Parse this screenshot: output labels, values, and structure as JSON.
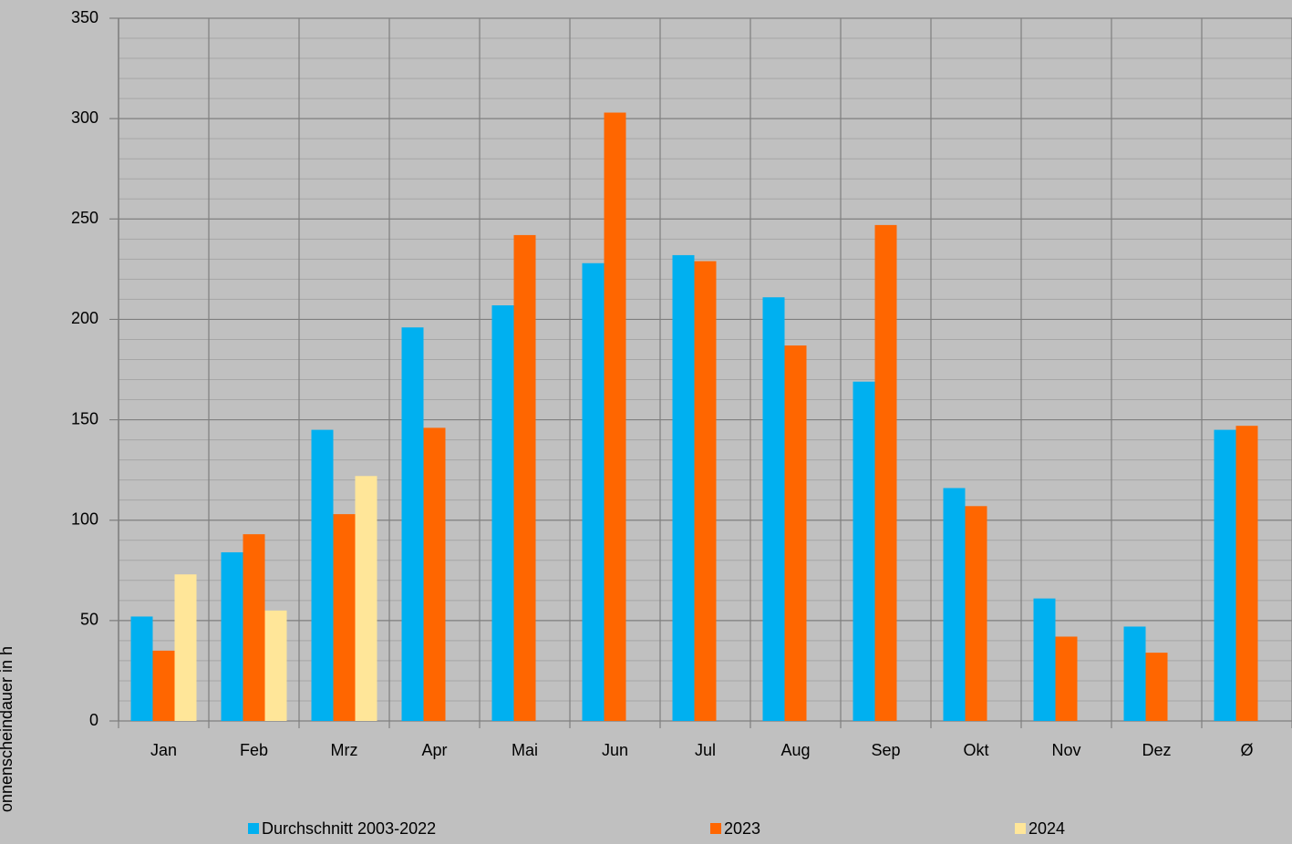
{
  "chart_data": {
    "type": "bar",
    "y_label": "onnenscheindauer in h",
    "categories": [
      "Jan",
      "Feb",
      "Mrz",
      "Apr",
      "Mai",
      "Jun",
      "Jul",
      "Aug",
      "Sep",
      "Okt",
      "Nov",
      "Dez",
      "Ø"
    ],
    "series": [
      {
        "name": "Durchschnitt 2003-2022",
        "color": "#00b0f0",
        "values": [
          52,
          84,
          145,
          196,
          207,
          228,
          232,
          211,
          169,
          116,
          61,
          47,
          145
        ]
      },
      {
        "name": "2023",
        "color": "#ff6600",
        "values": [
          35,
          93,
          103,
          146,
          242,
          303,
          229,
          187,
          247,
          107,
          42,
          34,
          147
        ]
      },
      {
        "name": "2024",
        "color": "#ffe699",
        "values": [
          73,
          55,
          122,
          null,
          null,
          null,
          null,
          null,
          null,
          null,
          null,
          null,
          null
        ]
      }
    ],
    "ylim": [
      0,
      350
    ],
    "yticks": [
      0,
      50,
      100,
      150,
      200,
      250,
      300,
      350
    ],
    "grid": true,
    "legend": "bottom"
  }
}
